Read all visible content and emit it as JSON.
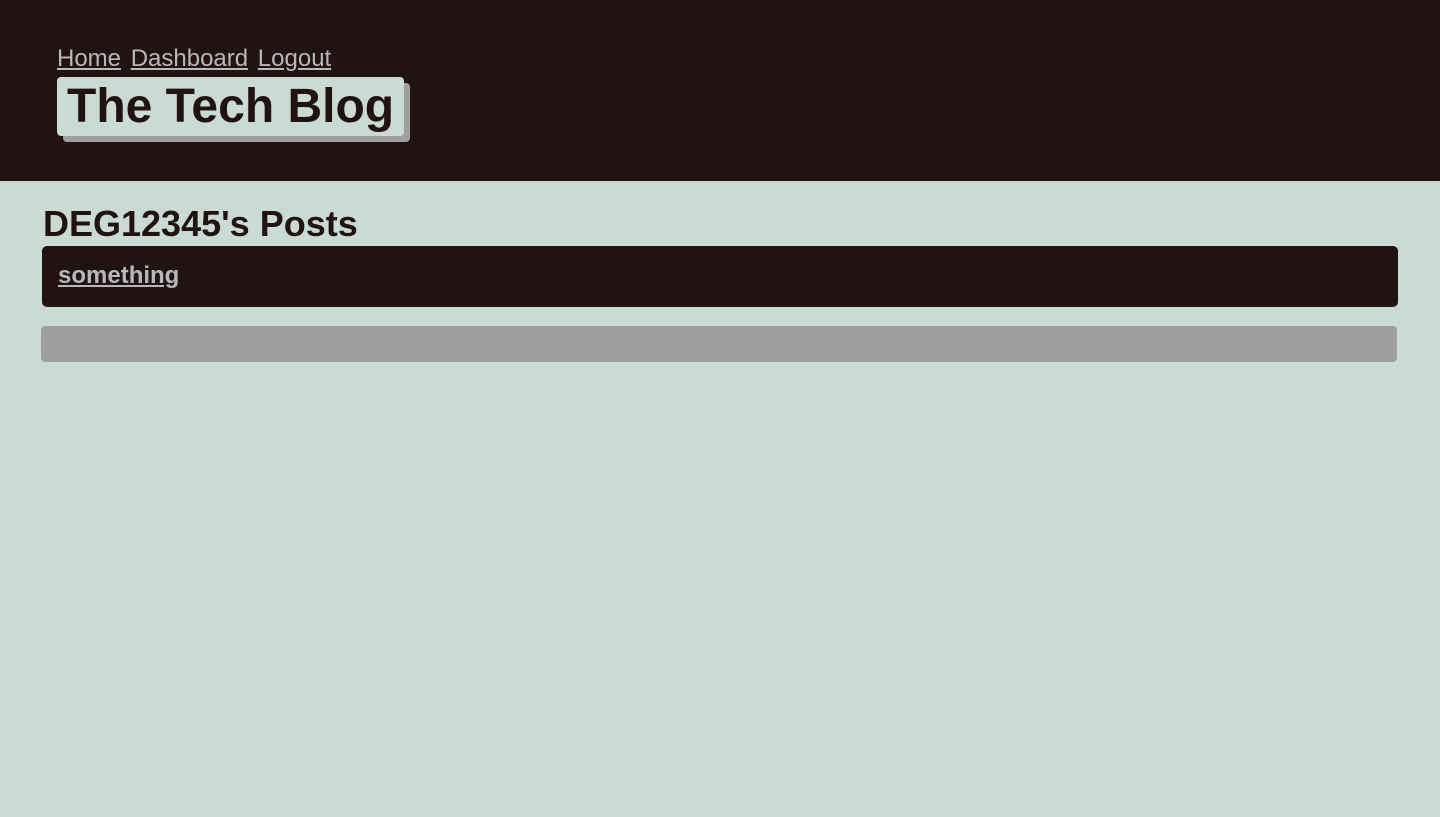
{
  "colors": {
    "header_bg": "#211213",
    "page_bg": "#cadbd4",
    "link": "#b8b8b8",
    "accent_gray": "#9f9f9f",
    "text_dark": "#211213"
  },
  "nav": {
    "home": "Home",
    "dashboard": "Dashboard",
    "logout": "Logout"
  },
  "header": {
    "title": "The Tech Blog"
  },
  "main": {
    "heading": "DEG12345's Posts",
    "posts": [
      {
        "title": "something"
      }
    ],
    "new_post_bar": ""
  }
}
